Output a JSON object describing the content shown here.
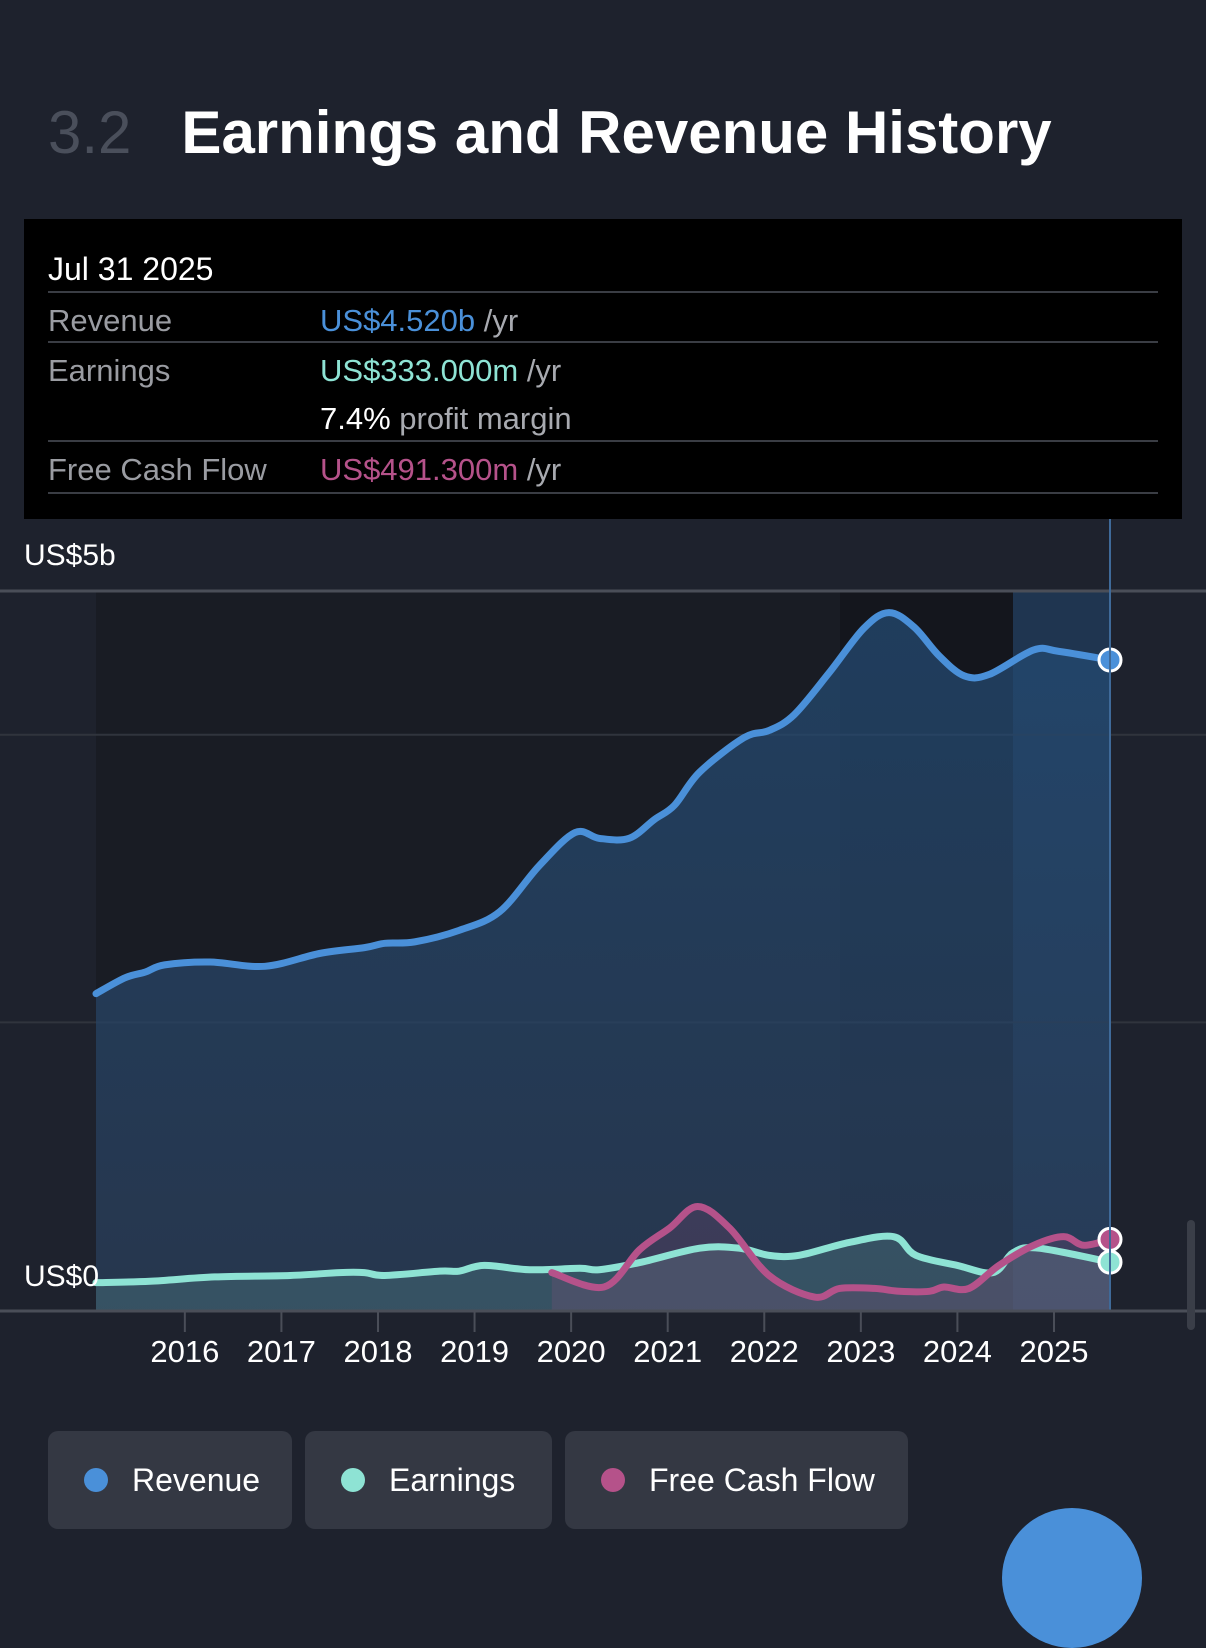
{
  "section": {
    "number": "3.2",
    "title": "Earnings and Revenue History"
  },
  "tooltip": {
    "date": "Jul 31 2025",
    "revenue_label": "Revenue",
    "revenue_value": "US$4.520b",
    "revenue_unit": "/yr",
    "earnings_label": "Earnings",
    "earnings_value": "US$333.000m",
    "earnings_unit": "/yr",
    "margin_value": "7.4%",
    "margin_text": "profit margin",
    "fcf_label": "Free Cash Flow",
    "fcf_value": "US$491.300m",
    "fcf_unit": "/yr"
  },
  "colors": {
    "revenue": "#4a90d9",
    "earnings": "#8ee3d4",
    "fcf": "#b5528a"
  },
  "legend": [
    {
      "label": "Revenue"
    },
    {
      "label": "Earnings"
    },
    {
      "label": "Free Cash Flow"
    }
  ],
  "chart_data": {
    "type": "line",
    "title": "Earnings and Revenue History",
    "y_tick_labels": [
      "US$5b",
      "US$0"
    ],
    "ylim": [
      0,
      5
    ],
    "xlim": [
      2015.08,
      2025.58
    ],
    "x_tick_labels": [
      "2016",
      "2017",
      "2018",
      "2019",
      "2020",
      "2021",
      "2022",
      "2023",
      "2024",
      "2025"
    ],
    "x_ticks": [
      2016,
      2017,
      2018,
      2019,
      2020,
      2021,
      2022,
      2023,
      2024,
      2025
    ],
    "gridlines": [
      2,
      4,
      5
    ],
    "series": [
      {
        "name": "Revenue",
        "x": [
          2015.08,
          2015.38,
          2015.59,
          2015.79,
          2016.26,
          2016.83,
          2017.4,
          2017.86,
          2018.07,
          2018.38,
          2018.84,
          2019.26,
          2019.67,
          2020.04,
          2020.29,
          2020.6,
          2020.86,
          2021.07,
          2021.33,
          2021.79,
          2022.05,
          2022.31,
          2022.67,
          2023.03,
          2023.29,
          2023.55,
          2023.81,
          2024.07,
          2024.33,
          2024.79,
          2025.05,
          2025.58
        ],
        "values": [
          2.2,
          2.31,
          2.35,
          2.4,
          2.42,
          2.39,
          2.48,
          2.52,
          2.55,
          2.56,
          2.64,
          2.77,
          3.09,
          3.32,
          3.28,
          3.28,
          3.41,
          3.51,
          3.74,
          3.98,
          4.03,
          4.14,
          4.43,
          4.74,
          4.85,
          4.75,
          4.55,
          4.41,
          4.42,
          4.59,
          4.58,
          4.52
        ]
      },
      {
        "name": "Earnings",
        "x": [
          2015.08,
          2015.64,
          2016.31,
          2017.09,
          2017.6,
          2017.86,
          2018.07,
          2018.64,
          2018.84,
          2019.1,
          2019.57,
          2020.09,
          2020.29,
          2020.71,
          2021.33,
          2021.74,
          2022.05,
          2022.36,
          2022.88,
          2023.34,
          2023.57,
          2024.0,
          2024.37,
          2024.58,
          2024.84,
          2025.58
        ],
        "values": [
          0.19,
          0.2,
          0.23,
          0.24,
          0.26,
          0.26,
          0.24,
          0.27,
          0.27,
          0.31,
          0.28,
          0.29,
          0.28,
          0.33,
          0.43,
          0.43,
          0.38,
          0.38,
          0.47,
          0.51,
          0.38,
          0.31,
          0.26,
          0.4,
          0.43,
          0.333
        ]
      },
      {
        "name": "Free Cash Flow",
        "x": [
          2019.8,
          2020.34,
          2020.71,
          2021.02,
          2021.31,
          2021.64,
          2022.05,
          2022.52,
          2022.78,
          2023.14,
          2023.4,
          2023.71,
          2023.86,
          2024.12,
          2024.43,
          2024.79,
          2025.1,
          2025.31,
          2025.58
        ],
        "values": [
          0.26,
          0.16,
          0.42,
          0.57,
          0.72,
          0.57,
          0.24,
          0.09,
          0.15,
          0.15,
          0.13,
          0.13,
          0.16,
          0.15,
          0.31,
          0.45,
          0.51,
          0.45,
          0.491
        ]
      }
    ]
  }
}
